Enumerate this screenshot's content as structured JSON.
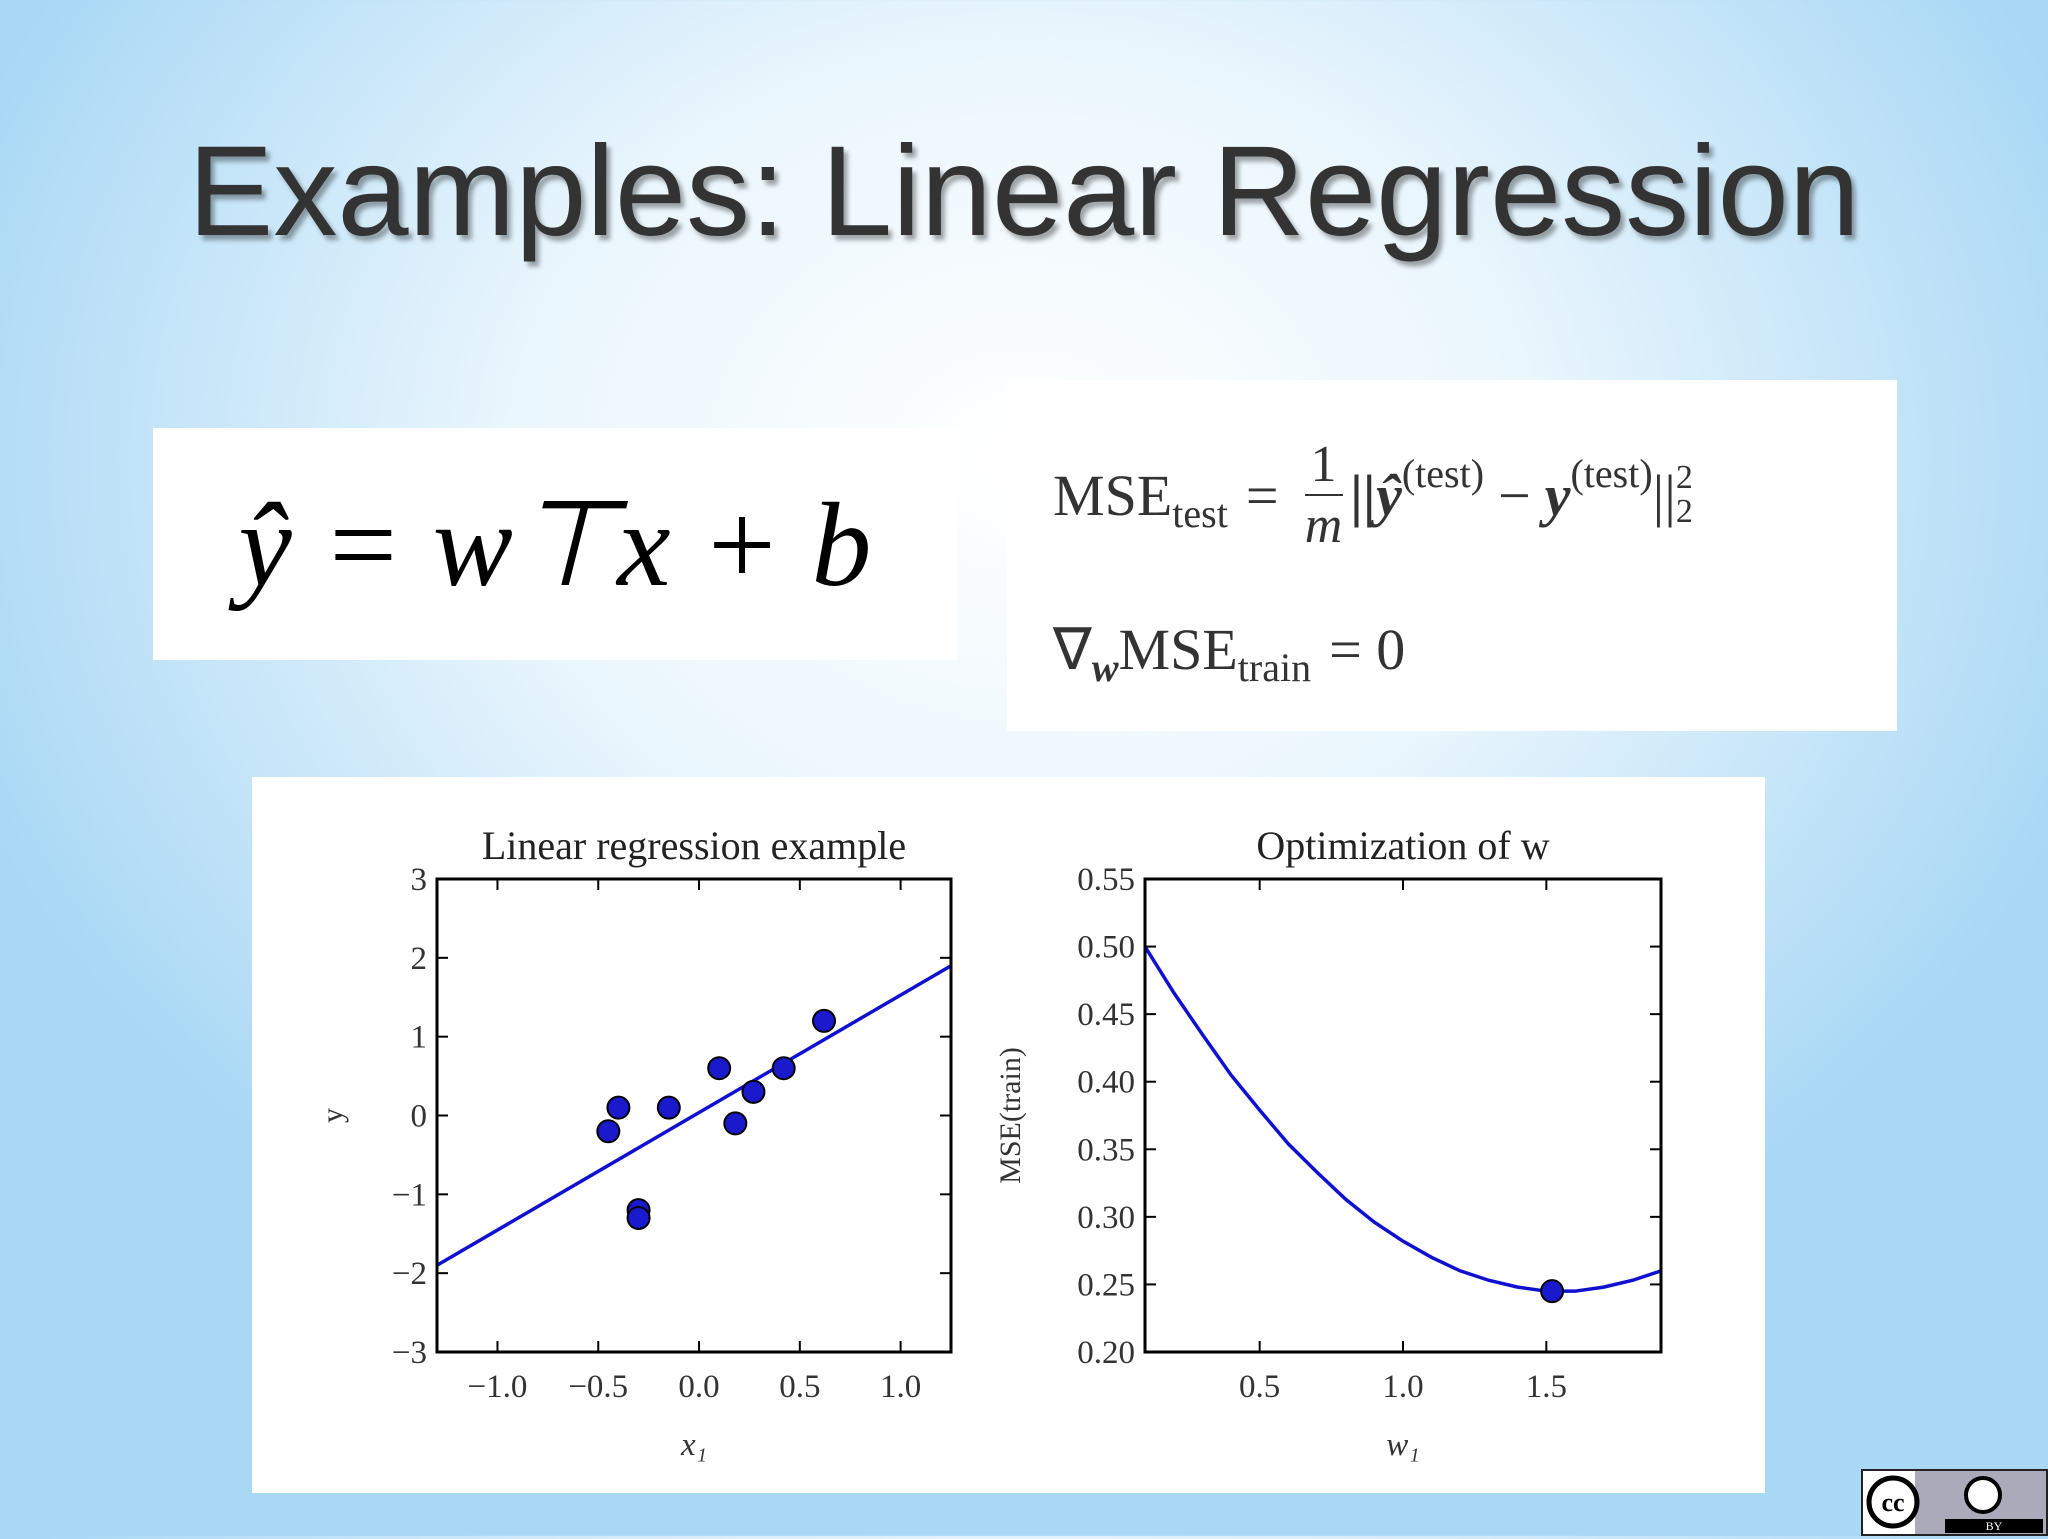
{
  "slide": {
    "title": "Examples: Linear Regression",
    "equations": {
      "prediction": "ŷ = w⊤x + b",
      "mse_test": [
        "MSE",
        "test",
        "=",
        "1",
        "m",
        "||ŷ",
        "(test)",
        "−",
        "y",
        "(test)",
        "||",
        "2",
        "2"
      ],
      "gradient": [
        "∇",
        "w",
        "MSE",
        "train",
        "= 0"
      ]
    },
    "badge": {
      "logo": "cc",
      "label": "BY"
    }
  },
  "chart_data": [
    {
      "type": "scatter",
      "title": "Linear regression example",
      "x_label": "x₁",
      "y_label": "y",
      "points": {
        "x": [
          -0.45,
          -0.4,
          -0.3,
          -0.3,
          -0.15,
          0.1,
          0.18,
          0.27,
          0.42,
          0.62
        ],
        "values": [
          -0.2,
          0.1,
          -1.2,
          -1.3,
          0.1,
          0.6,
          -0.1,
          0.3,
          0.6,
          1.2
        ],
        "color": "#1a1acc"
      },
      "line": {
        "x": [
          -1.3,
          1.25
        ],
        "values": [
          -1.9,
          1.9
        ],
        "color": "#1010d0"
      },
      "xlim": [
        -1.3,
        1.25
      ],
      "ylim": [
        -3,
        3
      ],
      "xticks": [
        {
          "value": -1.0,
          "label": "−1.0"
        },
        {
          "value": -0.5,
          "label": "−0.5"
        },
        {
          "value": 0,
          "label": "0.0"
        },
        0.5,
        {
          "value": 1.0,
          "label": "1.0"
        }
      ],
      "yticks": [
        {
          "value": -3,
          "label": "−3"
        },
        {
          "value": -2,
          "label": "−2"
        },
        {
          "value": -1,
          "label": "−1"
        },
        0,
        1,
        2,
        3
      ]
    },
    {
      "type": "line",
      "title": "Optimization of w",
      "x_label": "w₁",
      "y_label": "MSE(train)",
      "x": [
        0.1,
        0.2,
        0.3,
        0.4,
        0.5,
        0.6,
        0.7,
        0.8,
        0.9,
        1.0,
        1.1,
        1.2,
        1.3,
        1.4,
        1.5,
        1.6,
        1.7,
        1.8,
        1.9
      ],
      "values": [
        0.5,
        0.466,
        0.435,
        0.405,
        0.379,
        0.354,
        0.333,
        0.313,
        0.296,
        0.282,
        0.27,
        0.26,
        0.253,
        0.248,
        0.245,
        0.245,
        0.248,
        0.253,
        0.26
      ],
      "color": "#1010d0",
      "marker": {
        "x": 1.52,
        "value": 0.245,
        "color": "#1a1acc"
      },
      "xlim": [
        0.1,
        1.9
      ],
      "ylim": [
        0.2,
        0.55
      ],
      "xticks": [
        0.5,
        {
          "value": 1.0,
          "label": "1.0"
        },
        1.5
      ],
      "yticks": [
        {
          "value": 0.2,
          "label": "0.20"
        },
        0.25,
        {
          "value": 0.3,
          "label": "0.30"
        },
        0.35,
        {
          "value": 0.4,
          "label": "0.40"
        },
        0.45,
        {
          "value": 0.5,
          "label": "0.50"
        },
        0.55
      ]
    }
  ]
}
